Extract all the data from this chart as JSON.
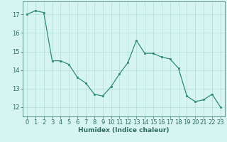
{
  "x": [
    0,
    1,
    2,
    3,
    4,
    5,
    6,
    7,
    8,
    9,
    10,
    11,
    12,
    13,
    14,
    15,
    16,
    17,
    18,
    19,
    20,
    21,
    22,
    23
  ],
  "y": [
    17.0,
    17.2,
    17.1,
    14.5,
    14.5,
    14.3,
    13.6,
    13.3,
    12.7,
    12.6,
    13.1,
    13.8,
    14.4,
    15.6,
    14.9,
    14.9,
    14.7,
    14.6,
    14.1,
    12.6,
    12.3,
    12.4,
    12.7,
    12.0
  ],
  "xlabel": "Humidex (Indice chaleur)",
  "xlim": [
    -0.5,
    23.5
  ],
  "ylim": [
    11.5,
    17.7
  ],
  "yticks": [
    12,
    13,
    14,
    15,
    16,
    17
  ],
  "xticks": [
    0,
    1,
    2,
    3,
    4,
    5,
    6,
    7,
    8,
    9,
    10,
    11,
    12,
    13,
    14,
    15,
    16,
    17,
    18,
    19,
    20,
    21,
    22,
    23
  ],
  "line_color": "#2e8b77",
  "marker_color": "#2e8b77",
  "bg_color": "#d6f5f0",
  "grid_color": "#b0ddd6",
  "label_color": "#2e6b5e",
  "tick_color": "#2e6b5e",
  "font_size_label": 6.5,
  "font_size_tick": 6.0
}
